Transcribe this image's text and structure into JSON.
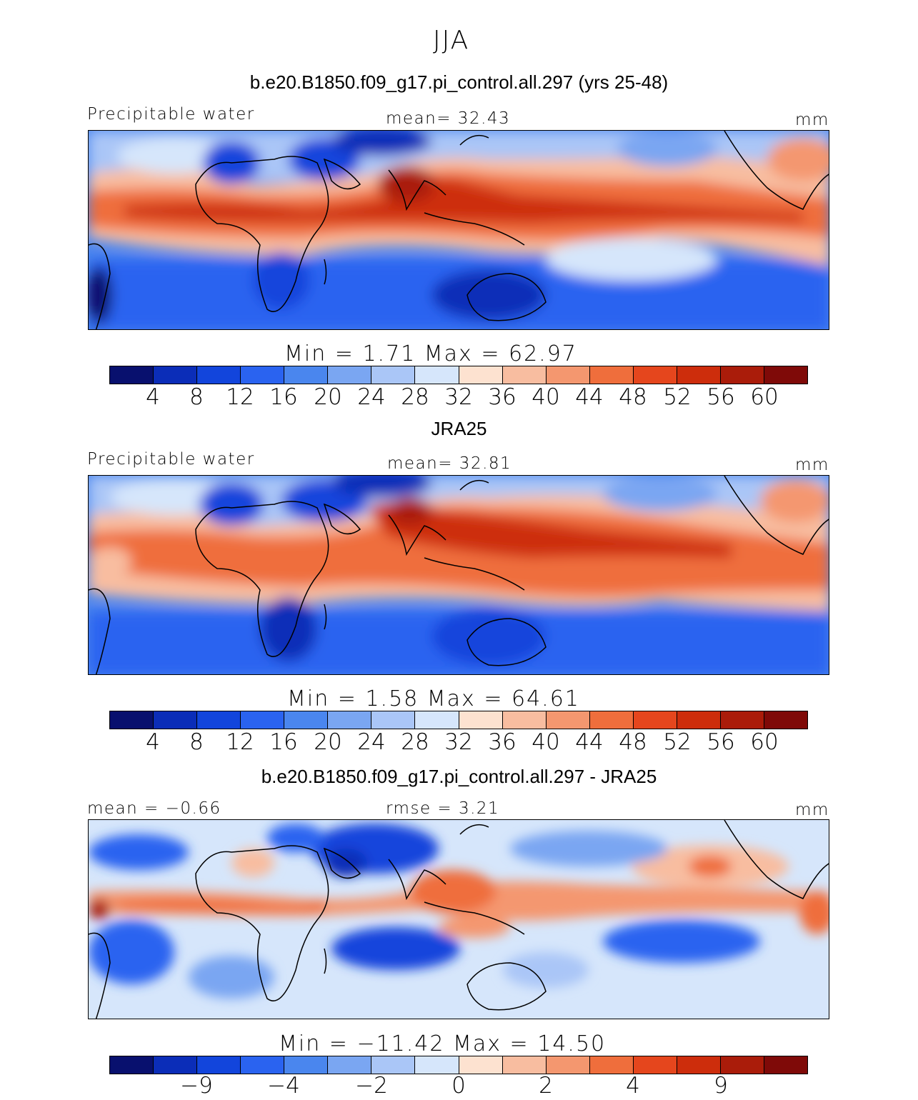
{
  "page_title": "JJA",
  "icons": {
    "coastline": "coastline-outline-icon"
  },
  "panels": [
    {
      "id": "model",
      "title": "b.e20.B1850.f09_g17.pi_control.all.297 (yrs 25-48)",
      "left_label": "Precipitable water",
      "center_label": "mean=  32.43",
      "units": "mm",
      "minmax": "Min =   1.71  Max =  62.97",
      "colorbar_ticks": [
        "4",
        "8",
        "12",
        "16",
        "20",
        "24",
        "28",
        "32",
        "36",
        "40",
        "44",
        "48",
        "52",
        "56",
        "60"
      ]
    },
    {
      "id": "obs",
      "title": "JRA25",
      "left_label": "Precipitable water",
      "center_label": "mean=  32.81",
      "units": "mm",
      "minmax": "Min =   1.58  Max =  64.61",
      "colorbar_ticks": [
        "4",
        "8",
        "12",
        "16",
        "20",
        "24",
        "28",
        "32",
        "36",
        "40",
        "44",
        "48",
        "52",
        "56",
        "60"
      ]
    },
    {
      "id": "diff",
      "title": "b.e20.B1850.f09_g17.pi_control.all.297 - JRA25",
      "left_label": "mean =  −0.66",
      "center_label": "rmse =    3.21",
      "units": "mm",
      "minmax": "Min = −11.42 Max =  14.50",
      "colorbar_ticks": [
        "−9",
        "−4",
        "−2",
        "0",
        "2",
        "4",
        "9"
      ]
    }
  ],
  "colorbar_colors": [
    "#08106e",
    "#0b2db8",
    "#1245dc",
    "#2a63f0",
    "#4a86ee",
    "#7aa6f2",
    "#aac6f7",
    "#d6e6fb",
    "#fde2d0",
    "#f8bda0",
    "#f4976f",
    "#ef6e3c",
    "#e5461d",
    "#cd2d0c",
    "#aa1c0a",
    "#7f0a08"
  ]
}
